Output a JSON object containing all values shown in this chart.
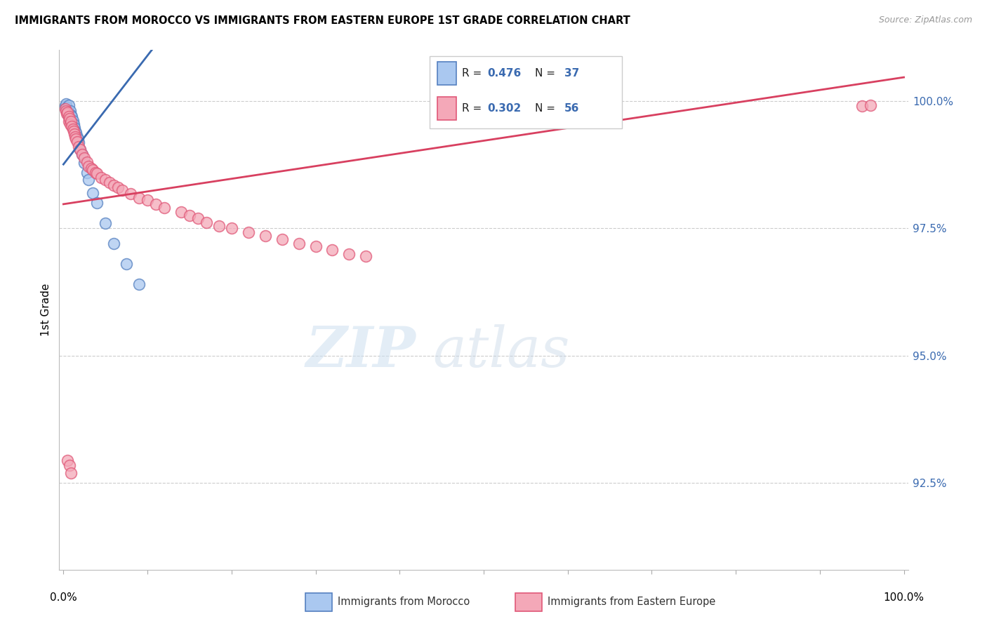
{
  "title": "IMMIGRANTS FROM MOROCCO VS IMMIGRANTS FROM EASTERN EUROPE 1ST GRADE CORRELATION CHART",
  "source": "Source: ZipAtlas.com",
  "ylabel": "1st Grade",
  "ytick_labels": [
    "100.0%",
    "97.5%",
    "95.0%",
    "92.5%"
  ],
  "ytick_values": [
    1.0,
    0.975,
    0.95,
    0.925
  ],
  "ymin": 0.908,
  "ymax": 1.01,
  "xmin": -0.005,
  "xmax": 1.005,
  "R_morocco": 0.476,
  "N_morocco": 37,
  "R_europe": 0.302,
  "N_europe": 56,
  "color_morocco_fill": "#aac8f0",
  "color_morocco_edge": "#5580c0",
  "color_europe_fill": "#f4a8b8",
  "color_europe_edge": "#e05878",
  "color_morocco_line": "#3a6ab0",
  "color_europe_line": "#d84060",
  "color_right_axis": "#3a6ab0",
  "color_grid": "#cccccc",
  "morocco_x": [
    0.002,
    0.003,
    0.003,
    0.004,
    0.004,
    0.005,
    0.005,
    0.006,
    0.006,
    0.006,
    0.007,
    0.007,
    0.008,
    0.008,
    0.009,
    0.009,
    0.01,
    0.01,
    0.011,
    0.012,
    0.013,
    0.014,
    0.015,
    0.016,
    0.017,
    0.018,
    0.02,
    0.022,
    0.025,
    0.028,
    0.03,
    0.035,
    0.04,
    0.05,
    0.06,
    0.075,
    0.09
  ],
  "morocco_y": [
    0.999,
    0.9985,
    0.9995,
    0.998,
    0.9988,
    0.9975,
    0.9982,
    0.9992,
    0.9978,
    0.997,
    0.9975,
    0.9965,
    0.998,
    0.9968,
    0.9972,
    0.996,
    0.997,
    0.9958,
    0.9962,
    0.9955,
    0.9948,
    0.994,
    0.9938,
    0.993,
    0.9925,
    0.9918,
    0.9905,
    0.9895,
    0.9878,
    0.986,
    0.9845,
    0.982,
    0.98,
    0.976,
    0.972,
    0.968,
    0.964
  ],
  "europe_x": [
    0.002,
    0.003,
    0.004,
    0.005,
    0.006,
    0.006,
    0.007,
    0.008,
    0.009,
    0.01,
    0.011,
    0.012,
    0.013,
    0.014,
    0.015,
    0.016,
    0.018,
    0.02,
    0.022,
    0.025,
    0.028,
    0.03,
    0.033,
    0.035,
    0.038,
    0.04,
    0.045,
    0.05,
    0.055,
    0.06,
    0.065,
    0.07,
    0.08,
    0.09,
    0.1,
    0.11,
    0.12,
    0.14,
    0.15,
    0.16,
    0.17,
    0.185,
    0.2,
    0.22,
    0.24,
    0.26,
    0.28,
    0.3,
    0.32,
    0.34,
    0.36,
    0.005,
    0.007,
    0.009,
    0.95,
    0.96
  ],
  "europe_y": [
    0.9985,
    0.998,
    0.9975,
    0.9978,
    0.997,
    0.996,
    0.9965,
    0.9955,
    0.996,
    0.995,
    0.9945,
    0.994,
    0.9935,
    0.993,
    0.9925,
    0.992,
    0.991,
    0.9905,
    0.9895,
    0.9888,
    0.988,
    0.9872,
    0.9868,
    0.9865,
    0.986,
    0.9858,
    0.985,
    0.9845,
    0.984,
    0.9835,
    0.983,
    0.9825,
    0.9818,
    0.981,
    0.9805,
    0.9798,
    0.979,
    0.9782,
    0.9775,
    0.977,
    0.9762,
    0.9755,
    0.975,
    0.9742,
    0.9736,
    0.9728,
    0.972,
    0.9715,
    0.9708,
    0.97,
    0.9695,
    0.9295,
    0.9285,
    0.927,
    0.999,
    0.9992
  ]
}
